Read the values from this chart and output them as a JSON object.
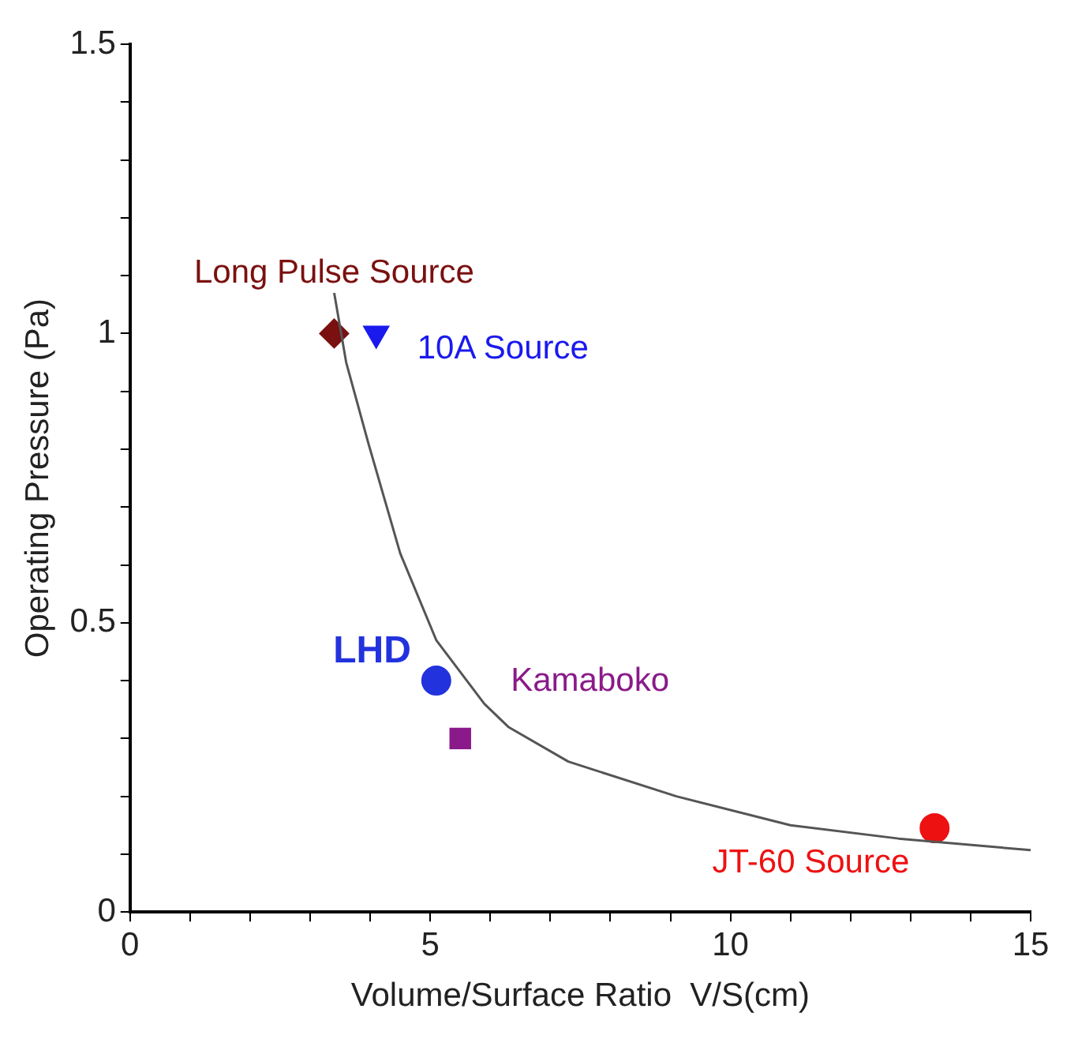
{
  "chart_data": {
    "type": "scatter",
    "xlabel": "Volume/Surface Ratio  V/S(cm)",
    "ylabel": "Operating Pressure (Pa)",
    "xlim": [
      0,
      15
    ],
    "ylim": [
      0,
      1.5
    ],
    "xticks": [
      0,
      {
        "value": 1,
        "label": null
      },
      {
        "value": 2,
        "label": null
      },
      {
        "value": 3,
        "label": null
      },
      {
        "value": 4,
        "label": null
      },
      5,
      {
        "value": 6,
        "label": null
      },
      {
        "value": 7,
        "label": null
      },
      {
        "value": 8,
        "label": null
      },
      {
        "value": 9,
        "label": null
      },
      10,
      {
        "value": 11,
        "label": null
      },
      {
        "value": 12,
        "label": null
      },
      {
        "value": 13,
        "label": null
      },
      {
        "value": 14,
        "label": null
      },
      15
    ],
    "yticks": [
      0,
      {
        "value": 0.1,
        "label": null
      },
      {
        "value": 0.2,
        "label": null
      },
      {
        "value": 0.3,
        "label": null
      },
      {
        "value": 0.4,
        "label": null
      },
      0.5,
      {
        "value": 0.6,
        "label": null
      },
      {
        "value": 0.7,
        "label": null
      },
      {
        "value": 0.8,
        "label": null
      },
      {
        "value": 0.9,
        "label": null
      },
      1,
      {
        "value": 1.1,
        "label": null
      },
      {
        "value": 1.2,
        "label": null
      },
      {
        "value": 1.3,
        "label": null
      },
      {
        "value": 1.4,
        "label": null
      },
      1.5
    ],
    "grid": false,
    "legend": false,
    "series": [
      {
        "type": "line",
        "color": "#555555",
        "marker": "none",
        "line_style": "solid",
        "x": [
          3.4,
          3.6,
          3.97,
          4.5,
          5.1,
          5.9,
          6.3,
          7.3,
          9.1,
          11.0,
          12.8,
          15
        ],
        "values": [
          1.07,
          0.95,
          0.81,
          0.62,
          0.47,
          0.36,
          0.32,
          0.26,
          0.2,
          0.15,
          0.127,
          0.107
        ]
      },
      {
        "name": "Long Pulse Source",
        "color": "#7a1010",
        "marker": "diamond",
        "x": [
          3.4
        ],
        "values": [
          1.0
        ]
      },
      {
        "name": "10A Source",
        "color": "#1a1aee",
        "marker": "triangle",
        "x": [
          4.1
        ],
        "values": [
          1.0
        ]
      },
      {
        "name": "LHD",
        "color": "#2233dd",
        "marker": "circle",
        "x": [
          5.1
        ],
        "values": [
          0.4
        ]
      },
      {
        "name": "Kamaboko",
        "color": "#8a1a8a",
        "marker": "square",
        "x": [
          5.5
        ],
        "values": [
          0.3
        ]
      },
      {
        "name": "JT-60 Source",
        "color": "#ee1111",
        "marker": "circle",
        "x": [
          13.4
        ],
        "values": [
          0.145
        ]
      }
    ]
  }
}
